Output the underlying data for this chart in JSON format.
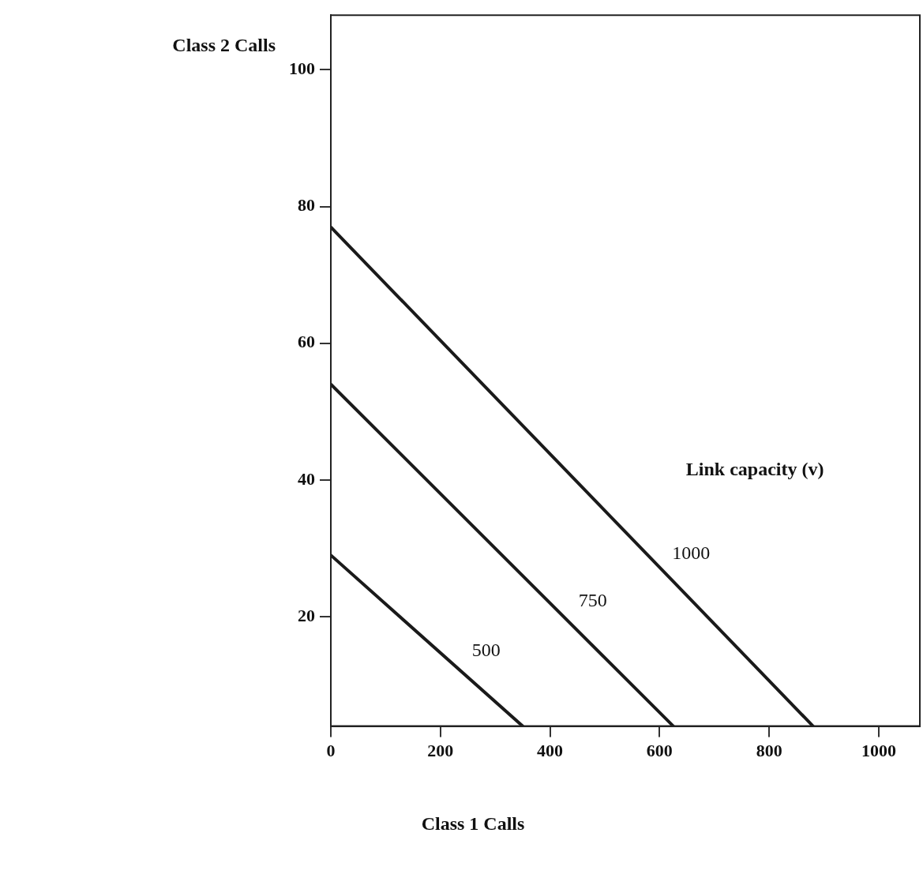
{
  "chart_data": {
    "type": "line",
    "xlabel": "Class 1 Calls",
    "ylabel": "Class 2 Calls",
    "xlim": [
      0,
      1075
    ],
    "ylim": [
      4,
      108
    ],
    "xticks": [
      0,
      200,
      400,
      600,
      800,
      1000
    ],
    "yticks": [
      20,
      40,
      60,
      80,
      100
    ],
    "grid": false,
    "legend": false,
    "marker": "none",
    "line_style": "solid",
    "series": [
      {
        "name": "500",
        "color": "#1a1a1a",
        "x": [
          0,
          350
        ],
        "values": [
          29,
          4
        ]
      },
      {
        "name": "750",
        "color": "#1a1a1a",
        "x": [
          0,
          625
        ],
        "values": [
          54,
          4
        ]
      },
      {
        "name": "1000",
        "color": "#1a1a1a",
        "x": [
          0,
          880
        ],
        "values": [
          77,
          4
        ]
      }
    ],
    "annotations": [
      "Link capacity (v)"
    ]
  }
}
